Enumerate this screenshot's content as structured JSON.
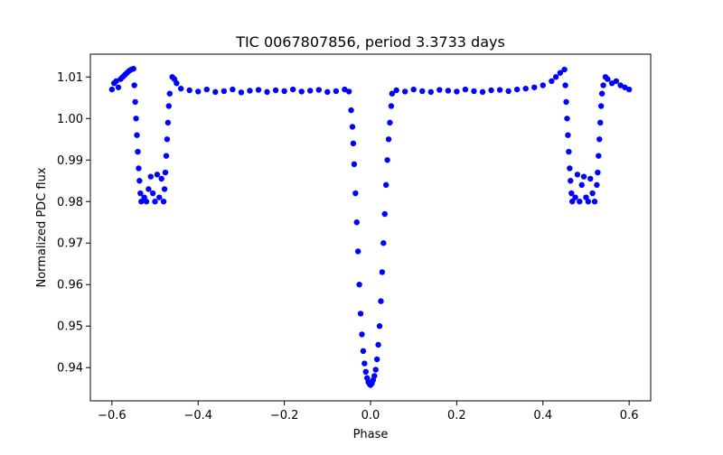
{
  "chart_data": {
    "type": "scatter",
    "title": "TIC 0067807856, period 3.3733 days",
    "xlabel": "Phase",
    "ylabel": "Normalized PDC flux",
    "xlim": [
      -0.65,
      0.65
    ],
    "ylim": [
      0.932,
      1.0155
    ],
    "xticks": [
      -0.6,
      -0.4,
      -0.2,
      0.0,
      0.2,
      0.4,
      0.6
    ],
    "xtick_labels": [
      "−0.6",
      "−0.4",
      "−0.2",
      "0.0",
      "0.2",
      "0.4",
      "0.6"
    ],
    "yticks": [
      0.94,
      0.95,
      0.96,
      0.97,
      0.98,
      0.99,
      1.0,
      1.01
    ],
    "ytick_labels": [
      "0.94",
      "0.95",
      "0.96",
      "0.97",
      "0.98",
      "0.99",
      "1.00",
      "1.01"
    ],
    "grid": false,
    "marker_color": "#0000ff",
    "series": [
      {
        "name": "phase-folded light curve",
        "points": [
          [
            -0.6,
            1.007
          ],
          [
            -0.595,
            1.0085
          ],
          [
            -0.59,
            1.009
          ],
          [
            -0.585,
            1.0075
          ],
          [
            -0.58,
            1.0095
          ],
          [
            -0.575,
            1.01
          ],
          [
            -0.57,
            1.0105
          ],
          [
            -0.565,
            1.011
          ],
          [
            -0.56,
            1.0115
          ],
          [
            -0.555,
            1.0118
          ],
          [
            -0.55,
            1.012
          ],
          [
            -0.548,
            1.008
          ],
          [
            -0.546,
            1.004
          ],
          [
            -0.544,
            1.0
          ],
          [
            -0.542,
            0.996
          ],
          [
            -0.54,
            0.992
          ],
          [
            -0.538,
            0.988
          ],
          [
            -0.536,
            0.985
          ],
          [
            -0.534,
            0.982
          ],
          [
            -0.532,
            0.98
          ],
          [
            -0.525,
            0.981
          ],
          [
            -0.52,
            0.98
          ],
          [
            -0.515,
            0.983
          ],
          [
            -0.51,
            0.986
          ],
          [
            -0.505,
            0.982
          ],
          [
            -0.5,
            0.98
          ],
          [
            -0.495,
            0.9865
          ],
          [
            -0.49,
            0.981
          ],
          [
            -0.485,
            0.9855
          ],
          [
            -0.48,
            0.98
          ],
          [
            -0.478,
            0.983
          ],
          [
            -0.476,
            0.987
          ],
          [
            -0.474,
            0.991
          ],
          [
            -0.472,
            0.995
          ],
          [
            -0.47,
            0.999
          ],
          [
            -0.468,
            1.003
          ],
          [
            -0.466,
            1.006
          ],
          [
            -0.46,
            1.01
          ],
          [
            -0.455,
            1.0095
          ],
          [
            -0.45,
            1.0085
          ],
          [
            -0.44,
            1.0072
          ],
          [
            -0.42,
            1.0068
          ],
          [
            -0.4,
            1.0065
          ],
          [
            -0.38,
            1.007
          ],
          [
            -0.36,
            1.0064
          ],
          [
            -0.34,
            1.0066
          ],
          [
            -0.32,
            1.007
          ],
          [
            -0.3,
            1.0063
          ],
          [
            -0.28,
            1.0067
          ],
          [
            -0.26,
            1.0069
          ],
          [
            -0.24,
            1.0064
          ],
          [
            -0.22,
            1.0068
          ],
          [
            -0.2,
            1.0066
          ],
          [
            -0.18,
            1.007
          ],
          [
            -0.16,
            1.0065
          ],
          [
            -0.14,
            1.0067
          ],
          [
            -0.12,
            1.0069
          ],
          [
            -0.1,
            1.0064
          ],
          [
            -0.08,
            1.0066
          ],
          [
            -0.06,
            1.007
          ],
          [
            -0.05,
            1.0065
          ],
          [
            -0.045,
            1.002
          ],
          [
            -0.042,
            0.998
          ],
          [
            -0.04,
            0.994
          ],
          [
            -0.038,
            0.989
          ],
          [
            -0.035,
            0.982
          ],
          [
            -0.032,
            0.975
          ],
          [
            -0.029,
            0.968
          ],
          [
            -0.026,
            0.96
          ],
          [
            -0.023,
            0.953
          ],
          [
            -0.02,
            0.948
          ],
          [
            -0.017,
            0.944
          ],
          [
            -0.014,
            0.941
          ],
          [
            -0.011,
            0.939
          ],
          [
            -0.008,
            0.9375
          ],
          [
            -0.005,
            0.9365
          ],
          [
            -0.002,
            0.936
          ],
          [
            0.0,
            0.9358
          ],
          [
            0.003,
            0.9362
          ],
          [
            0.006,
            0.937
          ],
          [
            0.009,
            0.938
          ],
          [
            0.012,
            0.9395
          ],
          [
            0.015,
            0.942
          ],
          [
            0.018,
            0.9455
          ],
          [
            0.021,
            0.95
          ],
          [
            0.024,
            0.956
          ],
          [
            0.027,
            0.963
          ],
          [
            0.03,
            0.97
          ],
          [
            0.033,
            0.977
          ],
          [
            0.036,
            0.984
          ],
          [
            0.039,
            0.99
          ],
          [
            0.042,
            0.995
          ],
          [
            0.045,
            0.999
          ],
          [
            0.048,
            1.003
          ],
          [
            0.05,
            1.006
          ],
          [
            0.06,
            1.0068
          ],
          [
            0.08,
            1.0065
          ],
          [
            0.1,
            1.007
          ],
          [
            0.12,
            1.0066
          ],
          [
            0.14,
            1.0064
          ],
          [
            0.16,
            1.0069
          ],
          [
            0.18,
            1.0067
          ],
          [
            0.2,
            1.0065
          ],
          [
            0.22,
            1.007
          ],
          [
            0.24,
            1.0066
          ],
          [
            0.26,
            1.0064
          ],
          [
            0.28,
            1.0068
          ],
          [
            0.3,
            1.0069
          ],
          [
            0.32,
            1.0066
          ],
          [
            0.34,
            1.007
          ],
          [
            0.36,
            1.0072
          ],
          [
            0.38,
            1.0075
          ],
          [
            0.4,
            1.008
          ],
          [
            0.42,
            1.009
          ],
          [
            0.43,
            1.01
          ],
          [
            0.44,
            1.011
          ],
          [
            0.45,
            1.0118
          ],
          [
            0.452,
            1.008
          ],
          [
            0.454,
            1.004
          ],
          [
            0.456,
            1.0
          ],
          [
            0.458,
            0.996
          ],
          [
            0.46,
            0.992
          ],
          [
            0.462,
            0.988
          ],
          [
            0.464,
            0.985
          ],
          [
            0.466,
            0.982
          ],
          [
            0.468,
            0.98
          ],
          [
            0.475,
            0.981
          ],
          [
            0.48,
            0.9865
          ],
          [
            0.485,
            0.98
          ],
          [
            0.49,
            0.984
          ],
          [
            0.495,
            0.986
          ],
          [
            0.5,
            0.981
          ],
          [
            0.505,
            0.98
          ],
          [
            0.51,
            0.9855
          ],
          [
            0.515,
            0.982
          ],
          [
            0.52,
            0.98
          ],
          [
            0.525,
            0.984
          ],
          [
            0.527,
            0.987
          ],
          [
            0.529,
            0.991
          ],
          [
            0.531,
            0.995
          ],
          [
            0.533,
            0.999
          ],
          [
            0.535,
            1.003
          ],
          [
            0.537,
            1.006
          ],
          [
            0.54,
            1.008
          ],
          [
            0.545,
            1.01
          ],
          [
            0.55,
            1.0095
          ],
          [
            0.56,
            1.0085
          ],
          [
            0.57,
            1.009
          ],
          [
            0.58,
            1.008
          ],
          [
            0.59,
            1.0075
          ],
          [
            0.6,
            1.007
          ]
        ]
      }
    ]
  }
}
